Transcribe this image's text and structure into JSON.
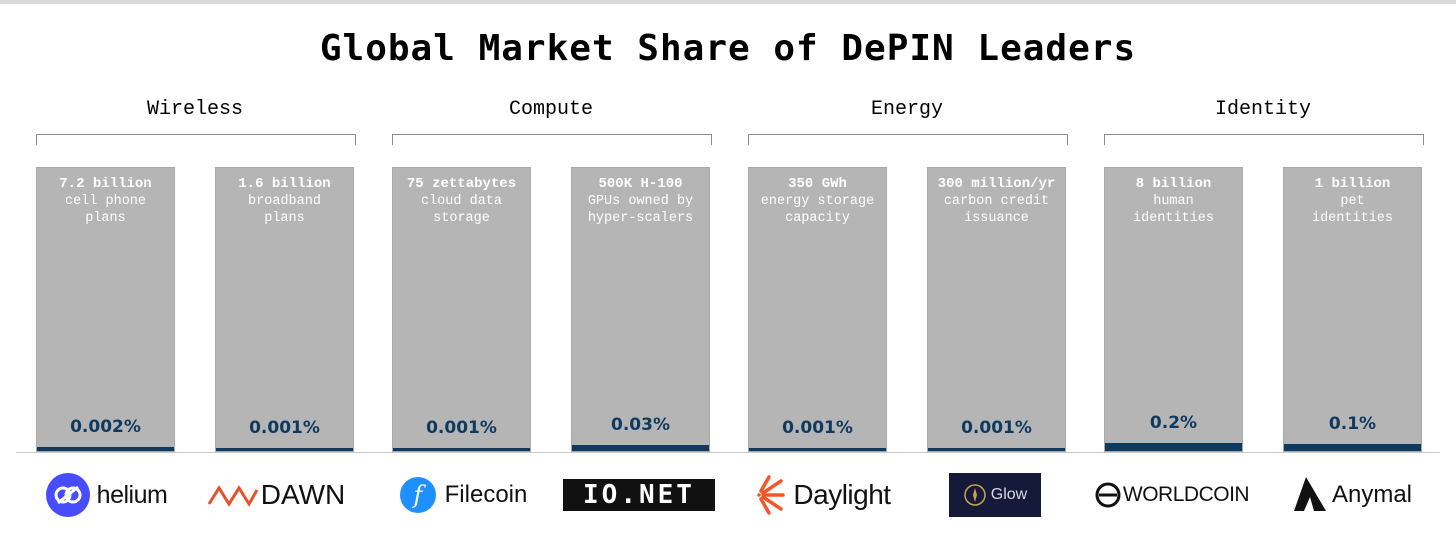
{
  "chart_data": {
    "type": "bar",
    "title": "Global Market Share of DePIN Leaders",
    "groups": [
      {
        "name": "Wireless",
        "categories": [
          0,
          1
        ]
      },
      {
        "name": "Compute",
        "categories": [
          2,
          3
        ]
      },
      {
        "name": "Energy",
        "categories": [
          4,
          5
        ]
      },
      {
        "name": "Identity",
        "categories": [
          6,
          7
        ]
      }
    ],
    "categories": [
      {
        "market_size": "7.2 billion",
        "desc1": "cell phone",
        "desc2": "plans",
        "share_label": "0.002%",
        "share_value": 0.002,
        "leader": "helium"
      },
      {
        "market_size": "1.6 billion",
        "desc1": "broadband",
        "desc2": "plans",
        "share_label": "0.001%",
        "share_value": 0.001,
        "leader": "DAWN"
      },
      {
        "market_size": "75 zettabytes",
        "desc1": "cloud data",
        "desc2": "storage",
        "share_label": "0.001%",
        "share_value": 0.001,
        "leader": "Filecoin"
      },
      {
        "market_size": "500K H-100",
        "desc1": "GPUs owned by",
        "desc2": "hyper-scalers",
        "share_label": "0.03%",
        "share_value": 0.03,
        "leader": "IO.NET"
      },
      {
        "market_size": "350 GWh",
        "desc1": "energy storage",
        "desc2": "capacity",
        "share_label": "0.001%",
        "share_value": 0.001,
        "leader": "Daylight"
      },
      {
        "market_size": "300 million/yr",
        "desc1": "carbon credit",
        "desc2": "issuance",
        "share_label": "0.001%",
        "share_value": 0.001,
        "leader": "Glow"
      },
      {
        "market_size": "8 billion",
        "desc1": "human",
        "desc2": "identities",
        "share_label": "0.2%",
        "share_value": 0.2,
        "leader": "WORLDCOIN"
      },
      {
        "market_size": "1 billion",
        "desc1": "pet",
        "desc2": "identities",
        "share_label": "0.1%",
        "share_value": 0.1,
        "leader": "Anymal"
      }
    ],
    "colors": {
      "total_bar": "#b5b5b5",
      "share_fill": "#0f3a5f",
      "share_text": "#0f3a5f",
      "bar_text": "#ffffff"
    },
    "grid": false
  }
}
